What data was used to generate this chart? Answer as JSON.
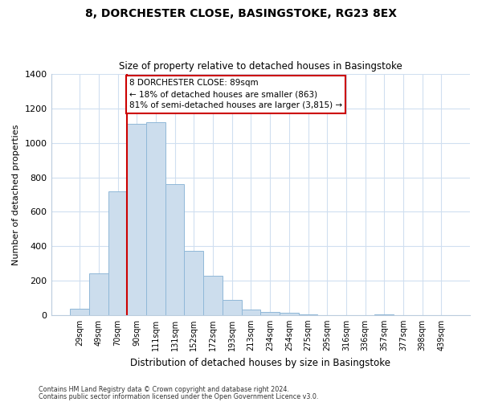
{
  "title": "8, DORCHESTER CLOSE, BASINGSTOKE, RG23 8EX",
  "subtitle": "Size of property relative to detached houses in Basingstoke",
  "xlabel": "Distribution of detached houses by size in Basingstoke",
  "ylabel": "Number of detached properties",
  "bar_labels": [
    "29sqm",
    "49sqm",
    "70sqm",
    "90sqm",
    "111sqm",
    "131sqm",
    "152sqm",
    "172sqm",
    "193sqm",
    "213sqm",
    "234sqm",
    "254sqm",
    "275sqm",
    "295sqm",
    "316sqm",
    "336sqm",
    "357sqm",
    "377sqm",
    "398sqm",
    "439sqm"
  ],
  "bar_values": [
    35,
    240,
    720,
    1110,
    1120,
    760,
    375,
    228,
    90,
    33,
    20,
    15,
    5,
    0,
    0,
    0,
    5,
    0,
    0,
    0
  ],
  "bar_color": "#ccdded",
  "bar_edge_color": "#90b8d8",
  "vline_color": "#cc0000",
  "ylim": [
    0,
    1400
  ],
  "yticks": [
    0,
    200,
    400,
    600,
    800,
    1000,
    1200,
    1400
  ],
  "annotation_title": "8 DORCHESTER CLOSE: 89sqm",
  "annotation_line1": "← 18% of detached houses are smaller (863)",
  "annotation_line2": "81% of semi-detached houses are larger (3,815) →",
  "annotation_box_color": "#ffffff",
  "annotation_box_edge": "#cc0000",
  "footnote1": "Contains HM Land Registry data © Crown copyright and database right 2024.",
  "footnote2": "Contains public sector information licensed under the Open Government Licence v3.0.",
  "background_color": "#ffffff",
  "grid_color": "#d0dff0"
}
